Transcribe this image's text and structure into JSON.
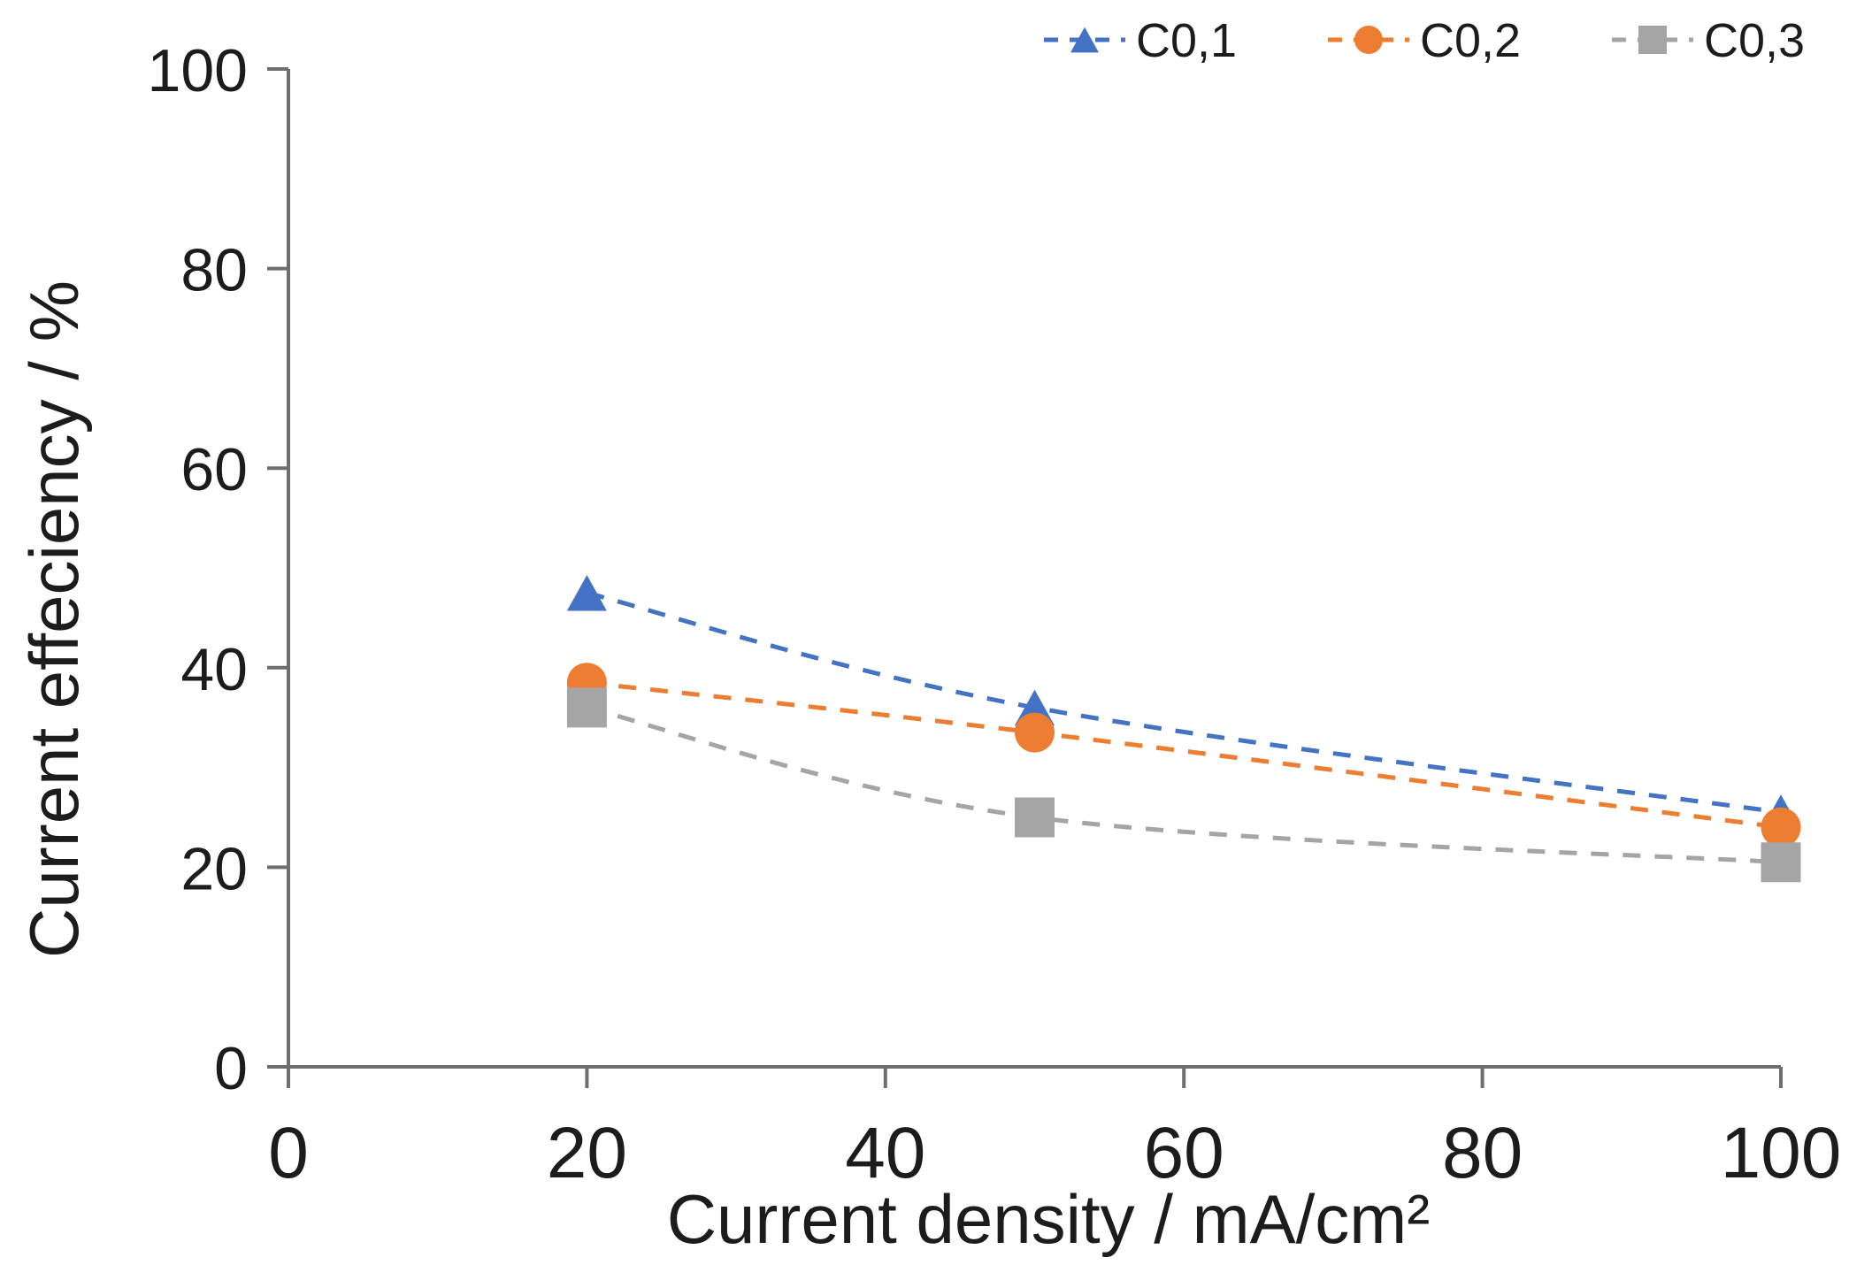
{
  "chart_data": {
    "type": "line",
    "x": [
      20,
      50,
      100
    ],
    "series": [
      {
        "name": "C0,1",
        "marker": "triangle",
        "color": "#4472C4",
        "values": [
          47.5,
          36,
          25.5
        ]
      },
      {
        "name": "C0,2",
        "marker": "circle",
        "color": "#ED7D31",
        "values": [
          38.5,
          33.5,
          24
        ]
      },
      {
        "name": "C0,3",
        "marker": "square",
        "color": "#A5A5A5",
        "values": [
          36,
          25,
          20.5
        ]
      }
    ],
    "xlabel": "Current density / mA/cm²",
    "ylabel": "Current effeciency / %",
    "xlim": [
      0,
      100
    ],
    "ylim": [
      0,
      100
    ],
    "x_ticks": [
      0,
      20,
      40,
      60,
      80,
      100
    ],
    "y_ticks": [
      0,
      20,
      40,
      60,
      80,
      100
    ],
    "grid": false,
    "line_style": "dashed",
    "legend_position": "top",
    "colors": {
      "axis": "#6e6e6e",
      "text": "#1c1c1c",
      "background": "#ffffff"
    }
  }
}
